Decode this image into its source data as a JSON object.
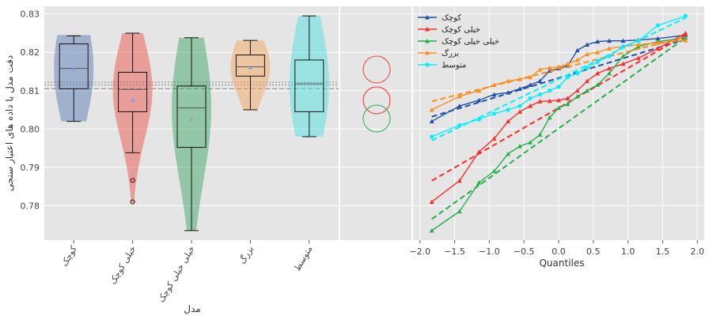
{
  "chart_data": [
    {
      "type": "box-violin",
      "title": "",
      "xlabel": "مدل",
      "ylabel": "دقت مدل با داده های اعتبار سنجی",
      "ylim": [
        0.771,
        0.832
      ],
      "yticks": [
        0.78,
        0.79,
        0.8,
        0.81,
        0.82,
        0.83
      ],
      "ytick_labels": [
        "0.78",
        "0.79",
        "0.80",
        "0.81",
        "0.82",
        "0.83"
      ],
      "grid": true,
      "reference_lines": [
        0.8105,
        0.8115,
        0.8122
      ],
      "series": [
        {
          "name": "کوچک",
          "color": "#4c72b0",
          "min": 0.802,
          "q1": 0.8105,
          "median": 0.8158,
          "q3": 0.8222,
          "max": 0.8243,
          "mean": 0.8155,
          "violin_min": 0.802,
          "violin_max": 0.8245,
          "outliers": []
        },
        {
          "name": "خیلی کوچک",
          "color": "#e8443a",
          "min": 0.7938,
          "q1": 0.8045,
          "median": 0.8103,
          "q3": 0.8148,
          "max": 0.825,
          "mean": 0.8075,
          "violin_min": 0.7808,
          "violin_max": 0.825,
          "outliers": [
            0.7866,
            0.781
          ]
        },
        {
          "name": "خیلی خیلی کوچک",
          "color": "#2ca05a",
          "min": 0.7735,
          "q1": 0.7952,
          "median": 0.8055,
          "q3": 0.8112,
          "max": 0.8238,
          "mean": 0.8025,
          "violin_min": 0.7735,
          "violin_max": 0.8238,
          "outliers": []
        },
        {
          "name": "بزرگ",
          "color": "#f5a050",
          "min": 0.805,
          "q1": 0.8138,
          "median": 0.8162,
          "q3": 0.8193,
          "max": 0.8231,
          "mean": 0.816,
          "violin_min": 0.805,
          "violin_max": 0.8231,
          "outliers": []
        },
        {
          "name": "متوسط",
          "color": "#40e0e0",
          "min": 0.798,
          "q1": 0.8045,
          "median": 0.8118,
          "q3": 0.818,
          "max": 0.8295,
          "mean": 0.8118,
          "violin_min": 0.798,
          "violin_max": 0.8295,
          "outliers": []
        }
      ]
    },
    {
      "type": "line",
      "title": "",
      "xlabel": "Quantiles",
      "ylabel": "",
      "xlim": [
        -2.1,
        2.1
      ],
      "ylim": [
        0.771,
        0.832
      ],
      "xticks": [
        -2.0,
        -1.5,
        -1.0,
        -0.5,
        0.0,
        0.5,
        1.0,
        1.5,
        2.0
      ],
      "xtick_labels": [
        "−2.0",
        "−1.5",
        "−1.0",
        "−0.5",
        "0.0",
        "0.5",
        "1.0",
        "1.5",
        "2.0"
      ],
      "grid": true,
      "legend": "top-left",
      "x": [
        -1.83,
        -1.43,
        -1.15,
        -0.93,
        -0.73,
        -0.56,
        -0.41,
        -0.27,
        -0.13,
        0.0,
        0.13,
        0.27,
        0.41,
        0.56,
        0.73,
        0.93,
        1.15,
        1.43,
        1.83
      ],
      "series": [
        {
          "name": "کوچک",
          "color": "#1f4fa8",
          "marker": "triangle",
          "values": [
            0.802,
            0.806,
            0.8075,
            0.809,
            0.8095,
            0.8105,
            0.8115,
            0.8125,
            0.8152,
            0.8158,
            0.8165,
            0.8205,
            0.822,
            0.8228,
            0.823,
            0.823,
            0.8232,
            0.8236,
            0.8245
          ],
          "fit": [
            0.8032,
            0.8234
          ]
        },
        {
          "name": "خیلی کوچک",
          "color": "#ff2a2a",
          "marker": "triangle",
          "values": [
            0.781,
            0.7865,
            0.794,
            0.7975,
            0.802,
            0.8045,
            0.806,
            0.8072,
            0.8073,
            0.8075,
            0.808,
            0.81,
            0.8125,
            0.8145,
            0.8158,
            0.817,
            0.8185,
            0.821,
            0.825
          ],
          "fit": [
            0.7865,
            0.8245
          ]
        },
        {
          "name": "خیلی خیلی کوچک",
          "color": "#22b04a",
          "marker": "triangle",
          "values": [
            0.7735,
            0.7785,
            0.786,
            0.789,
            0.7935,
            0.7955,
            0.7965,
            0.7985,
            0.803,
            0.8055,
            0.8065,
            0.8085,
            0.81,
            0.8115,
            0.8145,
            0.819,
            0.8215,
            0.8228,
            0.8238
          ],
          "fit": [
            0.7765,
            0.8238
          ]
        },
        {
          "name": "بزرگ",
          "color": "#ff8c1a",
          "marker": "triangle",
          "values": [
            0.805,
            0.8085,
            0.81,
            0.8115,
            0.8125,
            0.813,
            0.8135,
            0.8155,
            0.816,
            0.8162,
            0.817,
            0.818,
            0.8195,
            0.82,
            0.821,
            0.8215,
            0.822,
            0.8225,
            0.8231
          ],
          "fit": [
            0.8072,
            0.824
          ]
        },
        {
          "name": "متوسط",
          "color": "#00f0ff",
          "marker": "circle",
          "values": [
            0.798,
            0.801,
            0.8025,
            0.804,
            0.805,
            0.806,
            0.808,
            0.809,
            0.81,
            0.811,
            0.8135,
            0.8145,
            0.816,
            0.8175,
            0.819,
            0.8215,
            0.823,
            0.827,
            0.8295
          ],
          "fit": [
            0.797,
            0.829
          ]
        }
      ]
    }
  ]
}
